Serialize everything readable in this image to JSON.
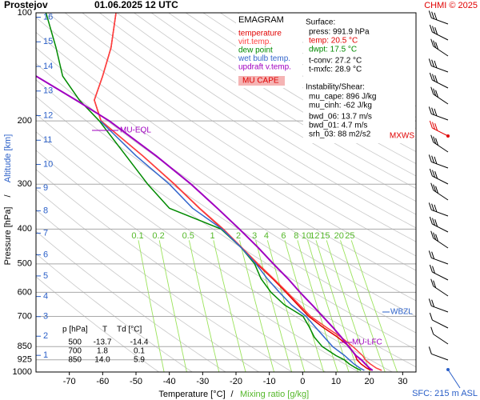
{
  "chart_data": {
    "type": "emagram",
    "title": "Prostejov",
    "subtitle": "01.06.2025 12 UTC",
    "credit": "CHMI © 2025",
    "xlabel": "Temperature [°C]",
    "separator": "/",
    "xlabel2": "Mixing ratio [g/kg]",
    "ylabel": "Pressure [hPa]",
    "y2label": "Altitude [km]",
    "surface_note": "SFC: 215 m ASL",
    "diagram_name": "EMAGRAM",
    "cape_label": "MU CAPE",
    "annotations": {
      "eql": "MU-EQL",
      "lfc": "MU-LFC",
      "wbzl": "WBZL",
      "mxws": "MXWS"
    },
    "xlim": [
      -80,
      34
    ],
    "xticks": [
      -70,
      -60,
      -50,
      -40,
      -30,
      -20,
      -10,
      0,
      10,
      20,
      30
    ],
    "ylim": [
      1000,
      100
    ],
    "yscale": "log",
    "yticks": [
      100,
      200,
      300,
      400,
      500,
      600,
      700,
      850,
      925,
      1000
    ],
    "y2ticks": [
      1,
      2,
      3,
      4,
      5,
      6,
      7,
      8,
      9,
      10,
      11,
      12,
      13,
      14,
      15,
      16
    ],
    "mixing_ratios": [
      0.1,
      0.2,
      0.5,
      1,
      2,
      3,
      4,
      6,
      8,
      10,
      12,
      15,
      20,
      25
    ],
    "pressure": [
      990,
      975,
      950,
      925,
      900,
      850,
      800,
      750,
      700,
      650,
      600,
      550,
      500,
      450,
      400,
      350,
      300,
      250,
      200,
      175,
      150,
      125,
      100
    ],
    "series": [
      {
        "name": "temperature",
        "color": "#e00000",
        "values": [
          20.5,
          19.2,
          17.5,
          16.3,
          15.8,
          14.0,
          10.5,
          6.0,
          1.8,
          -1.5,
          -5.0,
          -9.0,
          -13.7,
          -18.5,
          -24.0,
          -31.0,
          -38.5,
          -48.0,
          -60.5,
          -62.5,
          -60.0,
          -57.5,
          -56.0
        ]
      },
      {
        "name": "virt.temp.",
        "color": "#ff4040",
        "values": [
          23.7,
          22.1,
          20.3,
          18.8,
          18.0,
          15.1,
          11.5,
          7.0,
          2.4,
          -1.0,
          -4.6,
          -8.7,
          -13.4,
          -18.3,
          -23.8,
          -30.9,
          -38.4,
          -48.0,
          -60.5,
          -62.5,
          -60.0,
          -57.5,
          -56.0
        ]
      },
      {
        "name": "dew point",
        "color": "#008a00",
        "values": [
          17.5,
          16.0,
          14.0,
          12.5,
          10.0,
          5.9,
          3.5,
          2.0,
          0.1,
          -5.5,
          -9.5,
          -12.5,
          -14.4,
          -18.5,
          -24.5,
          -40.0,
          -46.5,
          -53.0,
          -61.0,
          -67.0,
          -72.0,
          -74.0,
          -77.0
        ]
      },
      {
        "name": "wet bulb temp.",
        "color": "#3366cc",
        "values": [
          18.5,
          17.2,
          15.4,
          14.0,
          12.6,
          9.0,
          6.5,
          3.8,
          1.0,
          -3.4,
          -7.0,
          -10.6,
          -14.0,
          -18.5,
          -24.2,
          -33.0,
          -40.0,
          -50.0,
          -60.7,
          null,
          null,
          null,
          null
        ]
      },
      {
        "name": "updraft v.temp.",
        "color": "#a000c0",
        "values": [
          21.0,
          20.0,
          18.8,
          17.6,
          16.0,
          13.8,
          11.6,
          9.0,
          6.0,
          2.8,
          -0.8,
          -4.4,
          -8.8,
          -13.4,
          -19.0,
          -25.6,
          -33.5,
          -44.0,
          -58.0,
          -68.0,
          -80.0,
          null,
          null
        ]
      }
    ],
    "info_lines": [
      {
        "text": "Surface:",
        "color": "#000000"
      },
      {
        "text": "press: 991.9 hPa",
        "color": "#000000"
      },
      {
        "text": "temp: 20.5 °C",
        "color": "#e00000"
      },
      {
        "text": "dwpt: 17.5 °C",
        "color": "#008a00"
      },
      {
        "text": "t-conv: 27.2 °C",
        "color": "#000000"
      },
      {
        "text": "t-mxfc: 28.9 °C",
        "color": "#000000"
      },
      {
        "text": "Instability/Shear:",
        "color": "#000000"
      },
      {
        "text": "mu_cape: 896 J/kg",
        "color": "#000000"
      },
      {
        "text": "mu_cinh: -62 J/kg",
        "color": "#000000"
      },
      {
        "text": "bwd_06: 13.7 m/s",
        "color": "#000000"
      },
      {
        "text": "bwd_01: 4.7 m/s",
        "color": "#000000"
      },
      {
        "text": "srh_03: 88 m2/s2",
        "color": "#000000"
      }
    ],
    "table": {
      "header": [
        "p [hPa]",
        "T",
        "Td [°C]"
      ],
      "rows": [
        [
          "500",
          "-13.7",
          "-14.4"
        ],
        [
          "700",
          "1.8",
          "0.1"
        ],
        [
          "850",
          "14.0",
          "5.9"
        ]
      ]
    }
  }
}
